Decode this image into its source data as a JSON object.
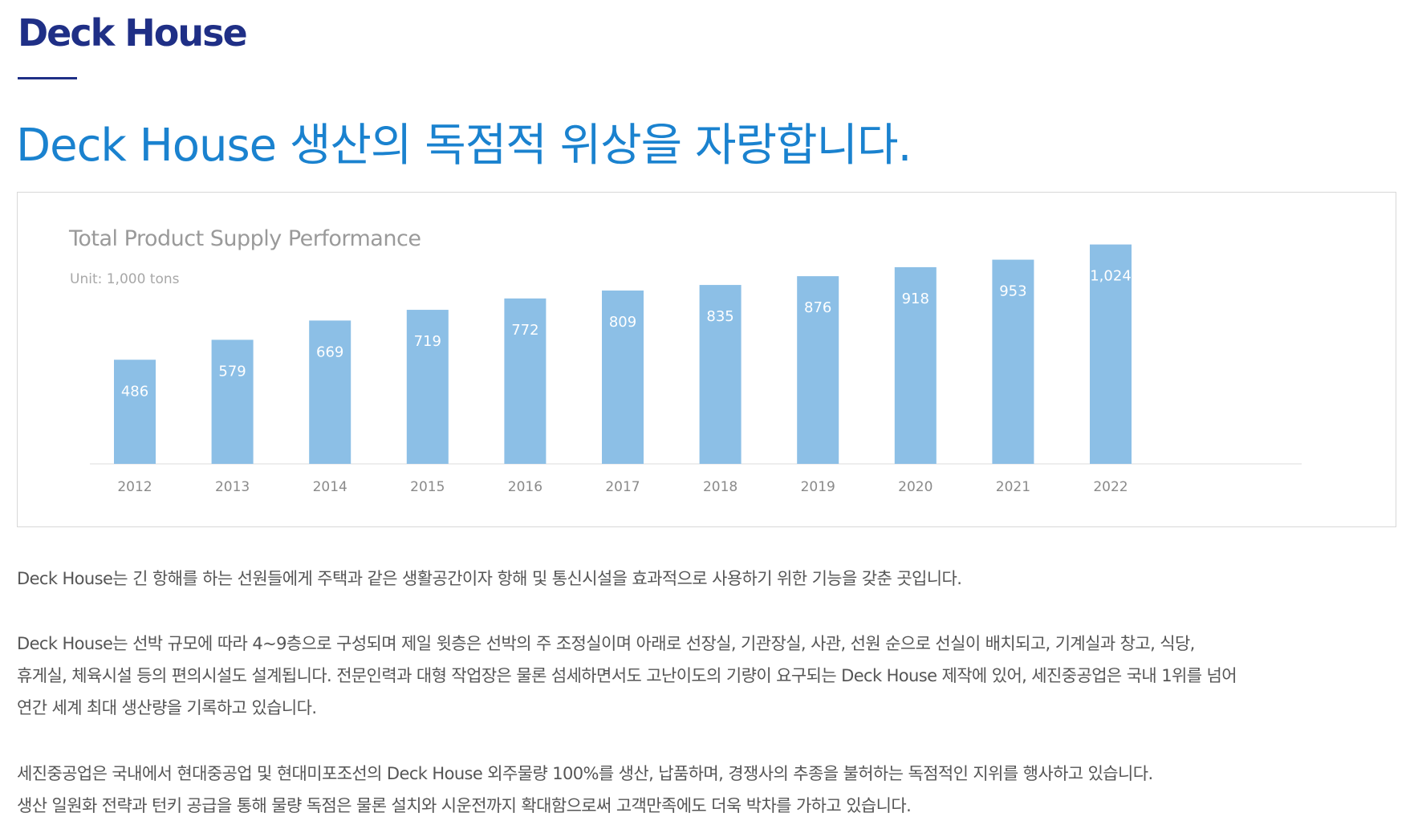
{
  "section_title": "Deck House",
  "headline": "Deck House 생산의 독점적 위상을 자랑합니다.",
  "colors": {
    "section_title": "#1f2f86",
    "headline": "#1a82cf",
    "bar": "#8cbfe6",
    "bar_label": "#ffffff",
    "chart_title": "#9a9a9a",
    "tick_label": "#8a8a8a",
    "body_text": "#555555"
  },
  "chart_data": {
    "type": "bar",
    "title": "Total Product Supply Performance",
    "subtitle": "Unit: 1,000 tons",
    "categories": [
      "2012",
      "2013",
      "2014",
      "2015",
      "2016",
      "2017",
      "2018",
      "2019",
      "2020",
      "2021",
      "2022"
    ],
    "values": [
      486,
      579,
      669,
      719,
      772,
      809,
      835,
      876,
      918,
      953,
      1024
    ],
    "value_labels": [
      "486",
      "579",
      "669",
      "719",
      "772",
      "809",
      "835",
      "876",
      "918",
      "953",
      "1,024"
    ],
    "xlabel": "",
    "ylabel": "",
    "ylim": [
      0,
      1050
    ],
    "grid": false,
    "legend": "none"
  },
  "paragraphs": [
    [
      "Deck House는 긴 항해를 하는 선원들에게 주택과 같은 생활공간이자 항해 및 통신시설을 효과적으로 사용하기 위한 기능을 갖춘 곳입니다."
    ],
    [
      "Deck House는 선박 규모에 따라 4~9층으로 구성되며 제일 윗층은 선박의 주 조정실이며 아래로 선장실, 기관장실, 사관, 선원 순으로 선실이 배치되고, 기계실과 창고, 식당,",
      "휴게실, 체육시설 등의 편의시설도 설계됩니다. 전문인력과 대형 작업장은 물론 섬세하면서도 고난이도의 기량이 요구되는 Deck House 제작에 있어, 세진중공업은 국내 1위를 넘어",
      "연간 세계 최대 생산량을 기록하고 있습니다."
    ],
    [
      "세진중공업은 국내에서 현대중공업 및 현대미포조선의 Deck House 외주물량 100%를 생산, 납품하며, 경쟁사의 추종을 불허하는 독점적인 지위를 행사하고 있습니다.",
      "생산 일원화 전략과 턴키 공급을 통해 물량 독점은 물론 설치와 시운전까지 확대함으로써 고객만족에도 더욱 박차를 가하고 있습니다."
    ]
  ]
}
